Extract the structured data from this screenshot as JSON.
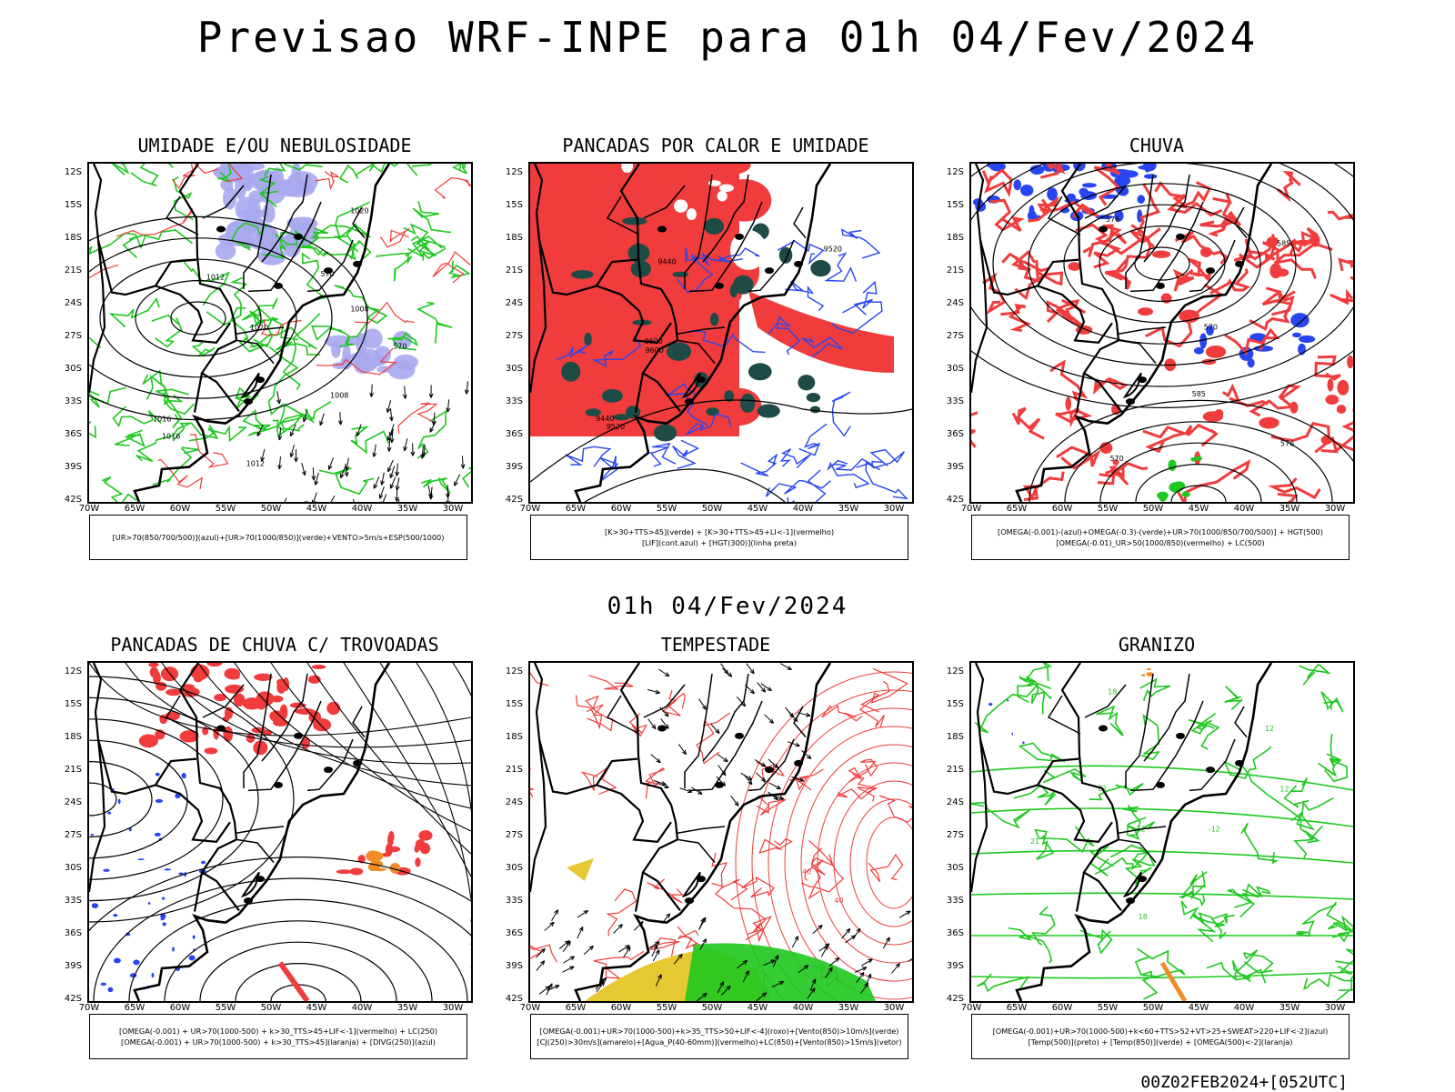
{
  "main_title": "Previsao WRF-INPE  para 01h 04/Fev/2024",
  "mid_title": "01h 04/Fev/2024",
  "footer": "00Z02FEB2024+[052UTC]",
  "lat_labels": [
    "12S",
    "15S",
    "18S",
    "21S",
    "24S",
    "27S",
    "30S",
    "33S",
    "36S",
    "39S",
    "42S"
  ],
  "lon_labels": [
    "70W",
    "65W",
    "60W",
    "55W",
    "50W",
    "45W",
    "40W",
    "35W",
    "30W"
  ],
  "panels": [
    {
      "title": "UMIDADE E/OU NEBULOSIDADE",
      "legend": [
        "[UR>70(850/700/500)](azul)+[UR>70(1000/850)](verde)+VENTO>5m/s+ESP(500/1000)"
      ],
      "contour_labels": [
        "1012",
        "1016",
        "1020",
        "1008",
        "570"
      ]
    },
    {
      "title": "PANCADAS POR CALOR E UMIDADE",
      "legend": [
        "[K>30+TTS>45](verde) + [K>30+TTS>45+LI<-1](vermelho)",
        "[LIF](cont.azul) + [HGT(300)](linha preta)"
      ],
      "contour_labels": [
        "9600",
        "9520",
        "9440"
      ]
    },
    {
      "title": "CHUVA",
      "legend": [
        "[OMEGA(-0.001)-(azul)+OMEGA(-0.3)-(verde)+UR>70(1000/850/700/500)] + HGT(500)",
        "[OMEGA(-0.01)_UR>50(1000/850)(vermelho) + LC(500)"
      ],
      "contour_labels": [
        "585",
        "576",
        "570"
      ]
    },
    {
      "title": "PANCADAS DE CHUVA C/ TROVOADAS",
      "legend": [
        "[OMEGA(-0.001) + UR>70(1000-500) + k>30_TTS>45+LIF<-1](vermelho) + LC(250)",
        "[OMEGA(-0.001) + UR>70(1000-500) + k>30_TTS>45](laranja) + [DIVG(250)](azul)"
      ],
      "contour_labels": []
    },
    {
      "title": "TEMPESTADE",
      "legend": [
        "[OMEGA(-0.001)+UR>70(1000-500)+k>35_TTS>50+LIF<-4](roxo)+[Vento(850)>10m/s](verde)",
        "[CJ(250)>30m/s](amarelo)+[Agua_P(40-60mm)](vermelho)+LC(850)+[Vento(850)>15m/s](vetor)"
      ],
      "contour_labels": [
        "40"
      ]
    },
    {
      "title": "GRANIZO",
      "legend": [
        "[OMEGA(-0.001)+UR>70(1000-500)+k<60+TTS>52+VT>25+SWEAT>220+LIF<-2](azul)",
        "[Temp(500)](preto) + [Temp(850)](verde) + [OMEGA(500)<-2](laranja)"
      ],
      "contour_labels": [
        "12",
        "18",
        "-12",
        "21"
      ]
    }
  ],
  "colors": {
    "red": "#f03c3c",
    "green": "#1ec81e",
    "blue": "#2846f0",
    "lavender": "#a8a8f0",
    "dark_teal": "#1e4b46",
    "yellow": "#e6c832",
    "orange": "#f08c28"
  }
}
